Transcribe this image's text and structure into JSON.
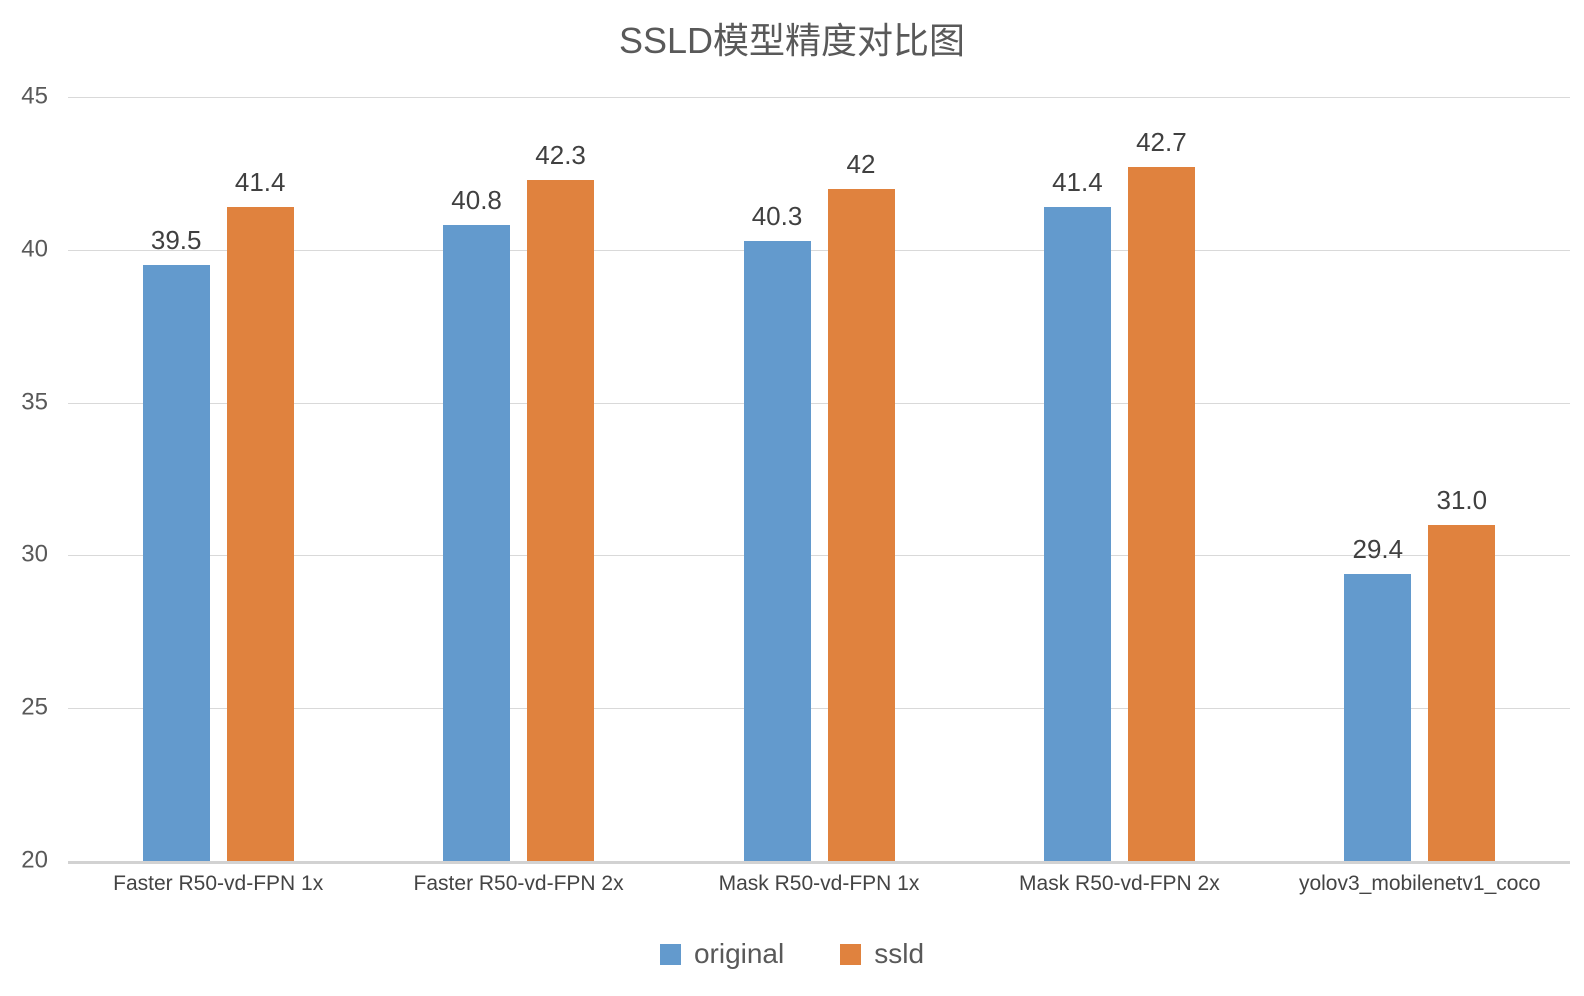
{
  "chart_data": {
    "type": "bar",
    "title": "SSLD模型精度对比图",
    "categories": [
      "Faster R50-vd-FPN 1x",
      "Faster  R50-vd-FPN 2x",
      "Mask R50-vd-FPN  1x",
      "Mask R50-vd-FPN  2x",
      "yolov3_mobilenetv1_coco"
    ],
    "series": [
      {
        "name": "original",
        "color": "#639ACD",
        "values": [
          39.5,
          40.8,
          40.3,
          41.4,
          29.4
        ],
        "labels": [
          "39.5",
          "40.8",
          "40.3",
          "41.4",
          "29.4"
        ]
      },
      {
        "name": "ssld",
        "color": "#E0823E",
        "values": [
          41.4,
          42.3,
          42.0,
          42.7,
          31.0
        ],
        "labels": [
          "41.4",
          "42.3",
          "42",
          "42.7",
          "31.0"
        ]
      }
    ],
    "ylim": [
      20,
      45
    ],
    "yticks": [
      20,
      25,
      30,
      35,
      40,
      45
    ],
    "grid": true,
    "legend_position": "bottom",
    "gridline_color": "#D9D9D9"
  }
}
